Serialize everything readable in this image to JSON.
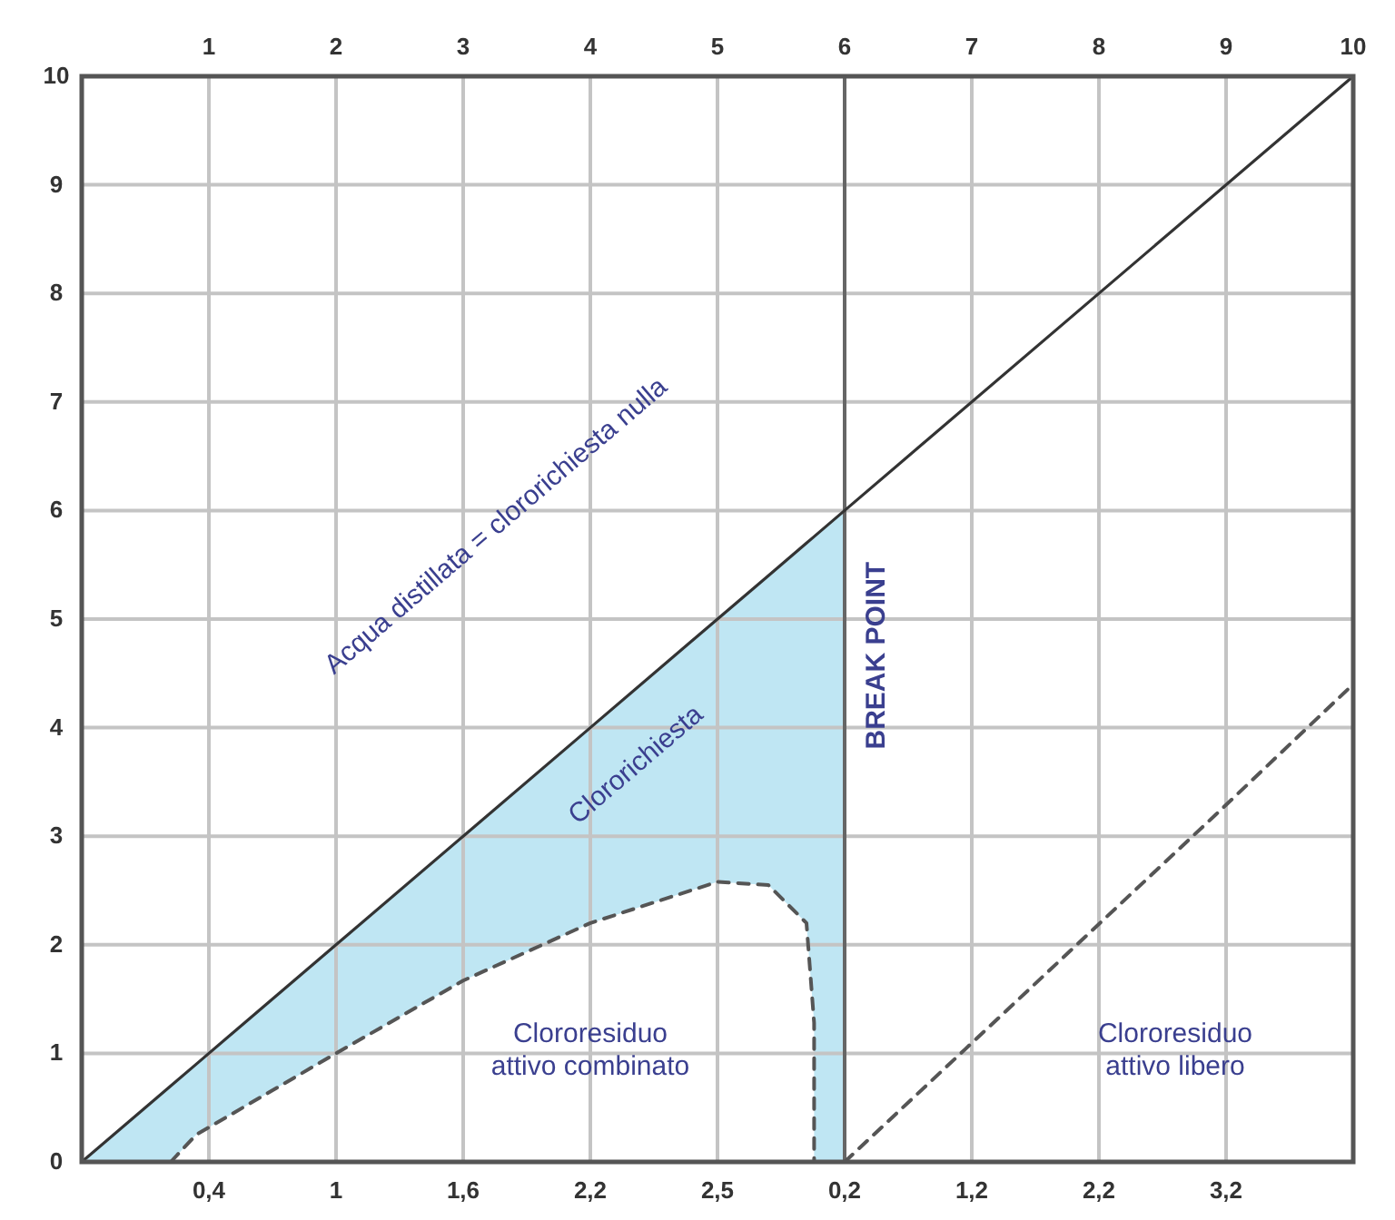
{
  "chart_data": {
    "type": "line",
    "xlim": [
      0,
      10
    ],
    "ylim": [
      0,
      10
    ],
    "annotations": [
      "0,4",
      "1",
      "1,6",
      "2,2",
      "2,5",
      "0,2",
      "1,2",
      "2,2",
      "3,2",
      "Clororichiesta"
    ],
    "xticks": [
      1,
      2,
      3,
      4,
      5,
      6,
      7,
      8,
      9,
      10
    ],
    "yticks": [
      0,
      1,
      2,
      3,
      4,
      5,
      6,
      7,
      8,
      9,
      10
    ],
    "grid": true,
    "ref_lines": [
      {
        "axis": "x",
        "value": 6,
        "label": "BREAK POINT",
        "color": "#666666"
      }
    ],
    "series": [
      {
        "name": "Acqua distillata = clororichiesta nulla",
        "color": "#333333",
        "line_style": "solid",
        "x": [
          0,
          0.7,
          0.9,
          2,
          3,
          4,
          5,
          5.4,
          5.7,
          5.76,
          5.76,
          6,
          10
        ],
        "values": [
          0,
          0.7,
          0.9,
          2,
          3,
          4,
          5,
          5.4,
          5.7,
          5.76,
          5.76,
          6,
          10
        ],
        "upper": [
          0,
          0.7,
          0.9,
          2,
          3,
          4,
          5,
          5.4,
          5.7,
          5.76,
          5.76,
          6,
          null
        ],
        "lower": [
          0,
          0,
          0.25,
          1,
          1.67,
          2.2,
          2.58,
          2.55,
          2.2,
          1.28,
          0,
          0,
          null
        ]
      },
      {
        "name": "Clororesiduo attivo combinato",
        "color": "#555555",
        "line_style": "dashed",
        "x": [
          0.7,
          0.9,
          2,
          3,
          4,
          5,
          5.4,
          5.7,
          5.76,
          5.76
        ],
        "values": [
          0,
          0.25,
          1,
          1.67,
          2.2,
          2.58,
          2.55,
          2.2,
          1.28,
          0
        ]
      },
      {
        "name": "Clororesiduo attivo libero",
        "color": "#555555",
        "line_style": "dashed",
        "x": [
          6,
          6.95,
          8.92,
          10
        ],
        "values": [
          0,
          1.04,
          3.2,
          4.4
        ]
      }
    ]
  }
}
